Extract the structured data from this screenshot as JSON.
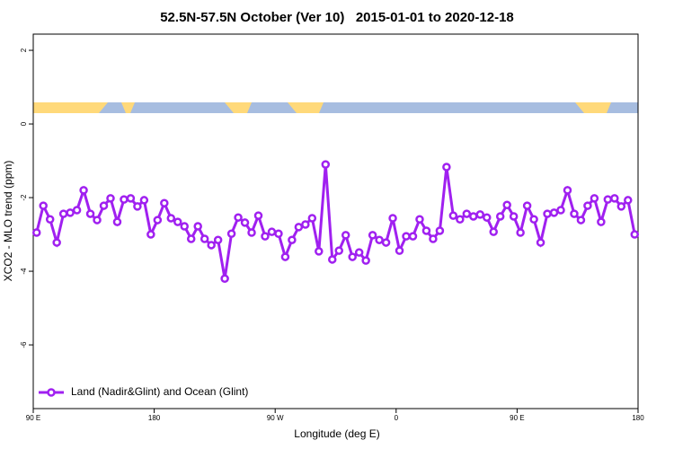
{
  "chart_data": {
    "type": "line",
    "title": "52.5N-57.5N October (Ver 10)   2015-01-01 to 2020-12-18",
    "x_label": "Longitude (deg E)",
    "y_label": "XCO2 - MLO trend (ppm)",
    "xlim": [
      90,
      540
    ],
    "ylim": [
      -7.73,
      2.44
    ],
    "xticks": [
      {
        "value": 90,
        "label": "90 E"
      },
      {
        "value": 180,
        "label": "180"
      },
      {
        "value": 270,
        "label": "90 W"
      },
      {
        "value": 360,
        "label": "0"
      },
      {
        "value": 450,
        "label": "90 E"
      },
      {
        "value": 540,
        "label": "180"
      }
    ],
    "yticks": [
      2,
      0,
      -2,
      -4,
      -6
    ],
    "legend": "bottom-left",
    "x": [
      92.5,
      97.5,
      102.5,
      107.5,
      112.5,
      117.5,
      122.5,
      127.5,
      132.5,
      137.5,
      142.5,
      147.5,
      152.5,
      157.5,
      162.5,
      167.5,
      172.5,
      177.5,
      182.5,
      187.5,
      192.5,
      197.5,
      202.5,
      207.5,
      212.5,
      217.5,
      222.5,
      227.5,
      232.5,
      237.5,
      242.5,
      247.5,
      252.5,
      257.5,
      262.5,
      267.5,
      272.5,
      277.5,
      282.5,
      287.5,
      292.5,
      297.5,
      302.5,
      307.5,
      312.5,
      317.5,
      322.5,
      327.5,
      332.5,
      337.5,
      342.5,
      347.5,
      352.5,
      357.5,
      362.5,
      367.5,
      372.5,
      377.5,
      382.5,
      387.5,
      392.5,
      397.5,
      402.5,
      407.5,
      412.5,
      417.5,
      422.5,
      427.5,
      432.5,
      437.5,
      442.5,
      447.5,
      452.5,
      457.5,
      462.5,
      467.5,
      472.5,
      477.5,
      482.5,
      487.5,
      492.5,
      497.5,
      502.5,
      507.5,
      512.5,
      517.5,
      522.5,
      527.5,
      532.5,
      537.5
    ],
    "series": [
      {
        "name": "Land (Nadir&Glint) and Ocean (Glint)",
        "color": "#a020f0",
        "values": [
          -2.95,
          -2.22,
          -2.59,
          -3.22,
          -2.44,
          -2.41,
          -2.34,
          -1.8,
          -2.44,
          -2.61,
          -2.22,
          -2.02,
          -2.66,
          -2.05,
          -2.02,
          -2.24,
          -2.07,
          -3.0,
          -2.61,
          -2.15,
          -2.56,
          -2.66,
          -2.78,
          -3.12,
          -2.78,
          -3.12,
          -3.29,
          -3.15,
          -4.2,
          -2.98,
          -2.54,
          -2.68,
          -2.95,
          -2.49,
          -3.05,
          -2.93,
          -2.98,
          -3.61,
          -3.15,
          -2.8,
          -2.73,
          -2.56,
          -3.46,
          -1.1,
          -3.68,
          -3.44,
          -3.02,
          -3.61,
          -3.49,
          -3.71,
          -3.02,
          -3.15,
          -3.22,
          -2.56,
          -3.44,
          -3.05,
          -3.05,
          -2.59,
          -2.9,
          -3.12,
          -2.9,
          -1.17,
          -2.49,
          -2.59,
          -2.44,
          -2.51,
          -2.46,
          -2.54,
          -2.93,
          -2.51,
          -2.2,
          -2.51,
          -2.95,
          -2.22,
          -2.59,
          -3.22,
          -2.44,
          -2.41,
          -2.34,
          -1.8,
          -2.44,
          -2.61,
          -2.22,
          -2.02,
          -2.66,
          -2.05,
          -2.02,
          -2.24,
          -2.07,
          -3.0
        ]
      }
    ]
  }
}
